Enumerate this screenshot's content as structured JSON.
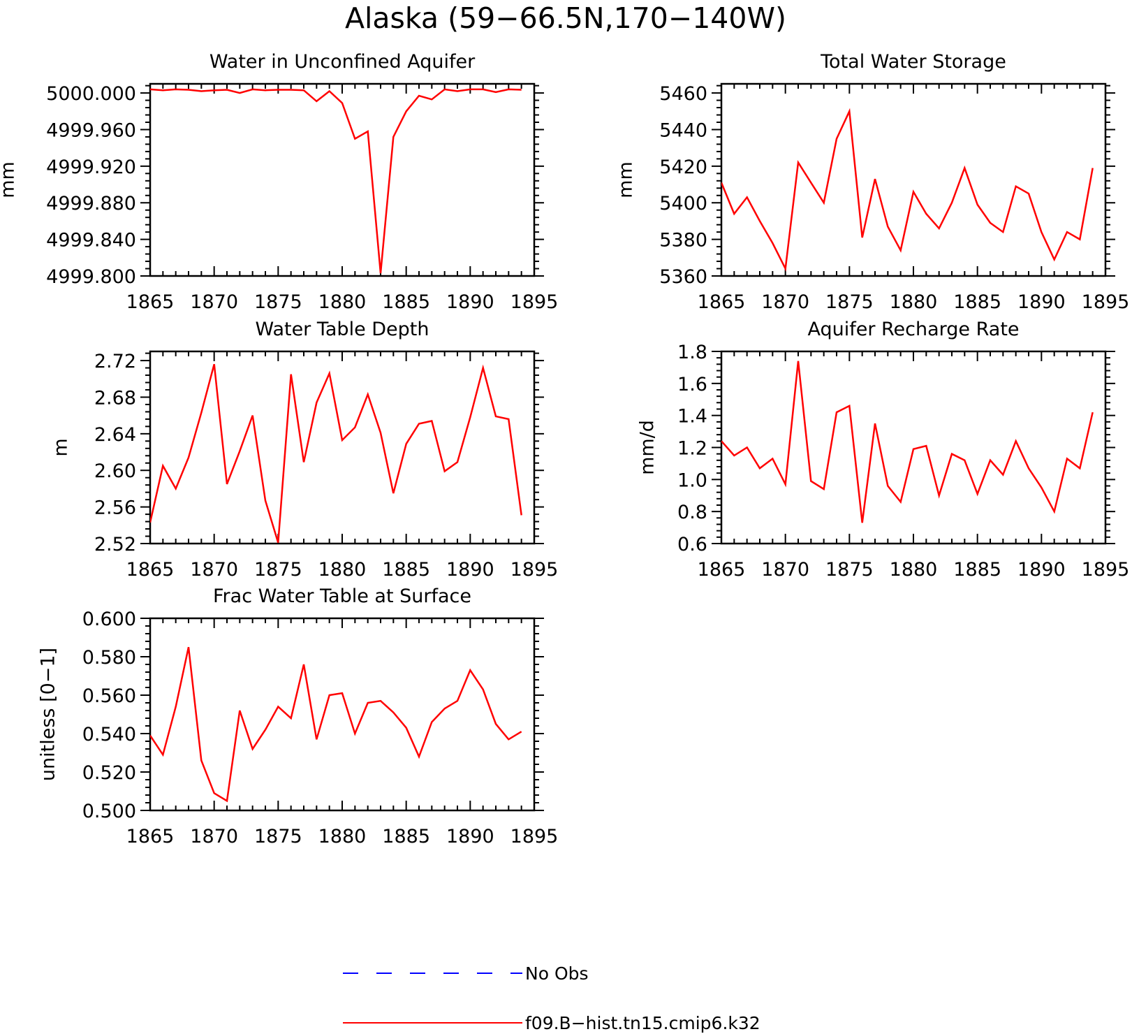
{
  "title": "Alaska (59−66.5N,170−140W)",
  "legend": [
    {
      "label": "No Obs",
      "color": "#0000ff",
      "style": "dashed"
    },
    {
      "label": "f09.B−hist.tn15.cmip6.k32",
      "color": "#ff0000",
      "style": "solid"
    }
  ],
  "chart_data": [
    {
      "type": "line",
      "title": "Water in Unconfined Aquifer",
      "ylabel": "mm",
      "xlim": [
        1865,
        1895
      ],
      "xticks": [
        1865,
        1870,
        1875,
        1880,
        1885,
        1890,
        1895
      ],
      "ylim": [
        4999.8,
        5000.01
      ],
      "yticks": [
        4999.8,
        4999.84,
        4999.88,
        4999.92,
        4999.96,
        5000.0
      ],
      "ytick_labels": [
        "4999.800",
        "4999.840",
        "4999.880",
        "4999.920",
        "4999.960",
        "5000.000"
      ],
      "series": [
        {
          "name": "f09.B−hist.tn15.cmip6.k32",
          "color": "#ff0000",
          "x": [
            1865,
            1866,
            1867,
            1868,
            1869,
            1870,
            1871,
            1872,
            1873,
            1874,
            1875,
            1876,
            1877,
            1878,
            1879,
            1880,
            1881,
            1882,
            1883,
            1884,
            1885,
            1886,
            1887,
            1888,
            1889,
            1890,
            1891,
            1892,
            1893,
            1894
          ],
          "values": [
            5000.004,
            5000.003,
            5000.004,
            5000.0035,
            5000.002,
            5000.003,
            5000.0035,
            5000.0,
            5000.004,
            5000.003,
            5000.0035,
            5000.0035,
            5000.003,
            4999.991,
            5000.002,
            4999.989,
            4999.95,
            4999.958,
            4999.803,
            4999.952,
            4999.98,
            4999.997,
            4999.993,
            5000.004,
            5000.002,
            5000.004,
            5000.004,
            5000.001,
            5000.004,
            5000.0035
          ]
        }
      ]
    },
    {
      "type": "line",
      "title": "Total Water Storage",
      "ylabel": "mm",
      "xlim": [
        1865,
        1895
      ],
      "xticks": [
        1865,
        1870,
        1875,
        1880,
        1885,
        1890,
        1895
      ],
      "ylim": [
        5360,
        5465
      ],
      "yticks": [
        5360,
        5380,
        5400,
        5420,
        5440,
        5460
      ],
      "ytick_labels": [
        "5360",
        "5380",
        "5400",
        "5420",
        "5440",
        "5460"
      ],
      "series": [
        {
          "name": "f09.B−hist.tn15.cmip6.k32",
          "color": "#ff0000",
          "x": [
            1865,
            1866,
            1867,
            1868,
            1869,
            1870,
            1871,
            1872,
            1873,
            1874,
            1875,
            1876,
            1877,
            1878,
            1879,
            1880,
            1881,
            1882,
            1883,
            1884,
            1885,
            1886,
            1887,
            1888,
            1889,
            1890,
            1891,
            1892,
            1893,
            1894
          ],
          "values": [
            5411,
            5394,
            5403,
            5390,
            5378,
            5364,
            5422,
            5411,
            5400,
            5435,
            5450,
            5381,
            5413,
            5387,
            5374,
            5406,
            5394,
            5386,
            5400,
            5419,
            5399,
            5389,
            5384,
            5409,
            5405,
            5384,
            5369,
            5384,
            5380,
            5419
          ]
        }
      ]
    },
    {
      "type": "line",
      "title": "Water Table Depth",
      "ylabel": "m",
      "xlim": [
        1865,
        1895
      ],
      "xticks": [
        1865,
        1870,
        1875,
        1880,
        1885,
        1890,
        1895
      ],
      "ylim": [
        2.52,
        2.73
      ],
      "yticks": [
        2.52,
        2.56,
        2.6,
        2.64,
        2.68,
        2.72
      ],
      "ytick_labels": [
        "2.52",
        "2.56",
        "2.60",
        "2.64",
        "2.68",
        "2.72"
      ],
      "series": [
        {
          "name": "f09.B−hist.tn15.cmip6.k32",
          "color": "#ff0000",
          "x": [
            1865,
            1866,
            1867,
            1868,
            1869,
            1870,
            1871,
            1872,
            1873,
            1874,
            1875,
            1876,
            1877,
            1878,
            1879,
            1880,
            1881,
            1882,
            1883,
            1884,
            1885,
            1886,
            1887,
            1888,
            1889,
            1890,
            1891,
            1892,
            1893,
            1894
          ],
          "values": [
            2.543,
            2.605,
            2.58,
            2.614,
            2.663,
            2.716,
            2.585,
            2.621,
            2.66,
            2.567,
            2.521,
            2.705,
            2.609,
            2.674,
            2.706,
            2.633,
            2.647,
            2.683,
            2.641,
            2.575,
            2.629,
            2.651,
            2.654,
            2.599,
            2.609,
            2.658,
            2.712,
            2.659,
            2.656,
            2.551
          ]
        }
      ]
    },
    {
      "type": "line",
      "title": "Aquifer Recharge Rate",
      "ylabel": "mm/d",
      "xlim": [
        1865,
        1895
      ],
      "xticks": [
        1865,
        1870,
        1875,
        1880,
        1885,
        1890,
        1895
      ],
      "ylim": [
        0.6,
        1.8
      ],
      "yticks": [
        0.6,
        0.8,
        1.0,
        1.2,
        1.4,
        1.6,
        1.8
      ],
      "ytick_labels": [
        "0.6",
        "0.8",
        "1.0",
        "1.2",
        "1.4",
        "1.6",
        "1.8"
      ],
      "series": [
        {
          "name": "f09.B−hist.tn15.cmip6.k32",
          "color": "#ff0000",
          "x": [
            1865,
            1866,
            1867,
            1868,
            1869,
            1870,
            1871,
            1872,
            1873,
            1874,
            1875,
            1876,
            1877,
            1878,
            1879,
            1880,
            1881,
            1882,
            1883,
            1884,
            1885,
            1886,
            1887,
            1888,
            1889,
            1890,
            1891,
            1892,
            1893,
            1894
          ],
          "values": [
            1.24,
            1.15,
            1.2,
            1.07,
            1.13,
            0.97,
            1.74,
            0.99,
            0.94,
            1.42,
            1.46,
            0.73,
            1.35,
            0.96,
            0.86,
            1.19,
            1.21,
            0.9,
            1.16,
            1.12,
            0.91,
            1.12,
            1.03,
            1.24,
            1.07,
            0.95,
            0.8,
            1.13,
            1.07,
            1.42
          ]
        }
      ]
    },
    {
      "type": "line",
      "title": "Frac Water Table at Surface",
      "ylabel": "unitless [0−1]",
      "xlim": [
        1865,
        1895
      ],
      "xticks": [
        1865,
        1870,
        1875,
        1880,
        1885,
        1890,
        1895
      ],
      "ylim": [
        0.5,
        0.6
      ],
      "yticks": [
        0.5,
        0.52,
        0.54,
        0.56,
        0.58,
        0.6
      ],
      "ytick_labels": [
        "0.500",
        "0.520",
        "0.540",
        "0.560",
        "0.580",
        "0.600"
      ],
      "series": [
        {
          "name": "f09.B−hist.tn15.cmip6.k32",
          "color": "#ff0000",
          "x": [
            1865,
            1866,
            1867,
            1868,
            1869,
            1870,
            1871,
            1872,
            1873,
            1874,
            1875,
            1876,
            1877,
            1878,
            1879,
            1880,
            1881,
            1882,
            1883,
            1884,
            1885,
            1886,
            1887,
            1888,
            1889,
            1890,
            1891,
            1892,
            1893,
            1894
          ],
          "values": [
            0.539,
            0.529,
            0.554,
            0.585,
            0.526,
            0.509,
            0.505,
            0.552,
            0.532,
            0.542,
            0.554,
            0.548,
            0.576,
            0.537,
            0.56,
            0.561,
            0.54,
            0.556,
            0.557,
            0.551,
            0.543,
            0.528,
            0.546,
            0.553,
            0.557,
            0.573,
            0.563,
            0.545,
            0.537,
            0.541
          ]
        }
      ]
    }
  ]
}
